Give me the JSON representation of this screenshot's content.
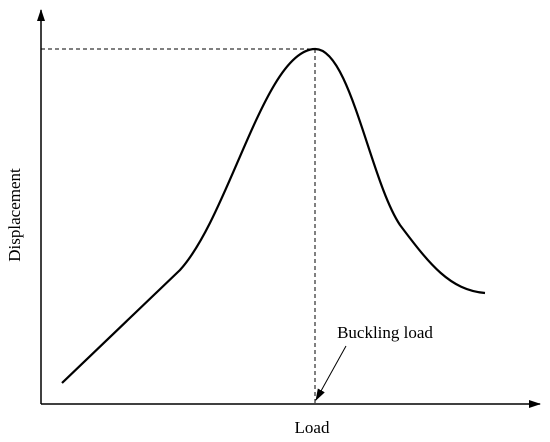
{
  "axes": {
    "y_label": "Displacement",
    "x_label": "Load"
  },
  "annotation": {
    "text": "Buckling load"
  }
}
